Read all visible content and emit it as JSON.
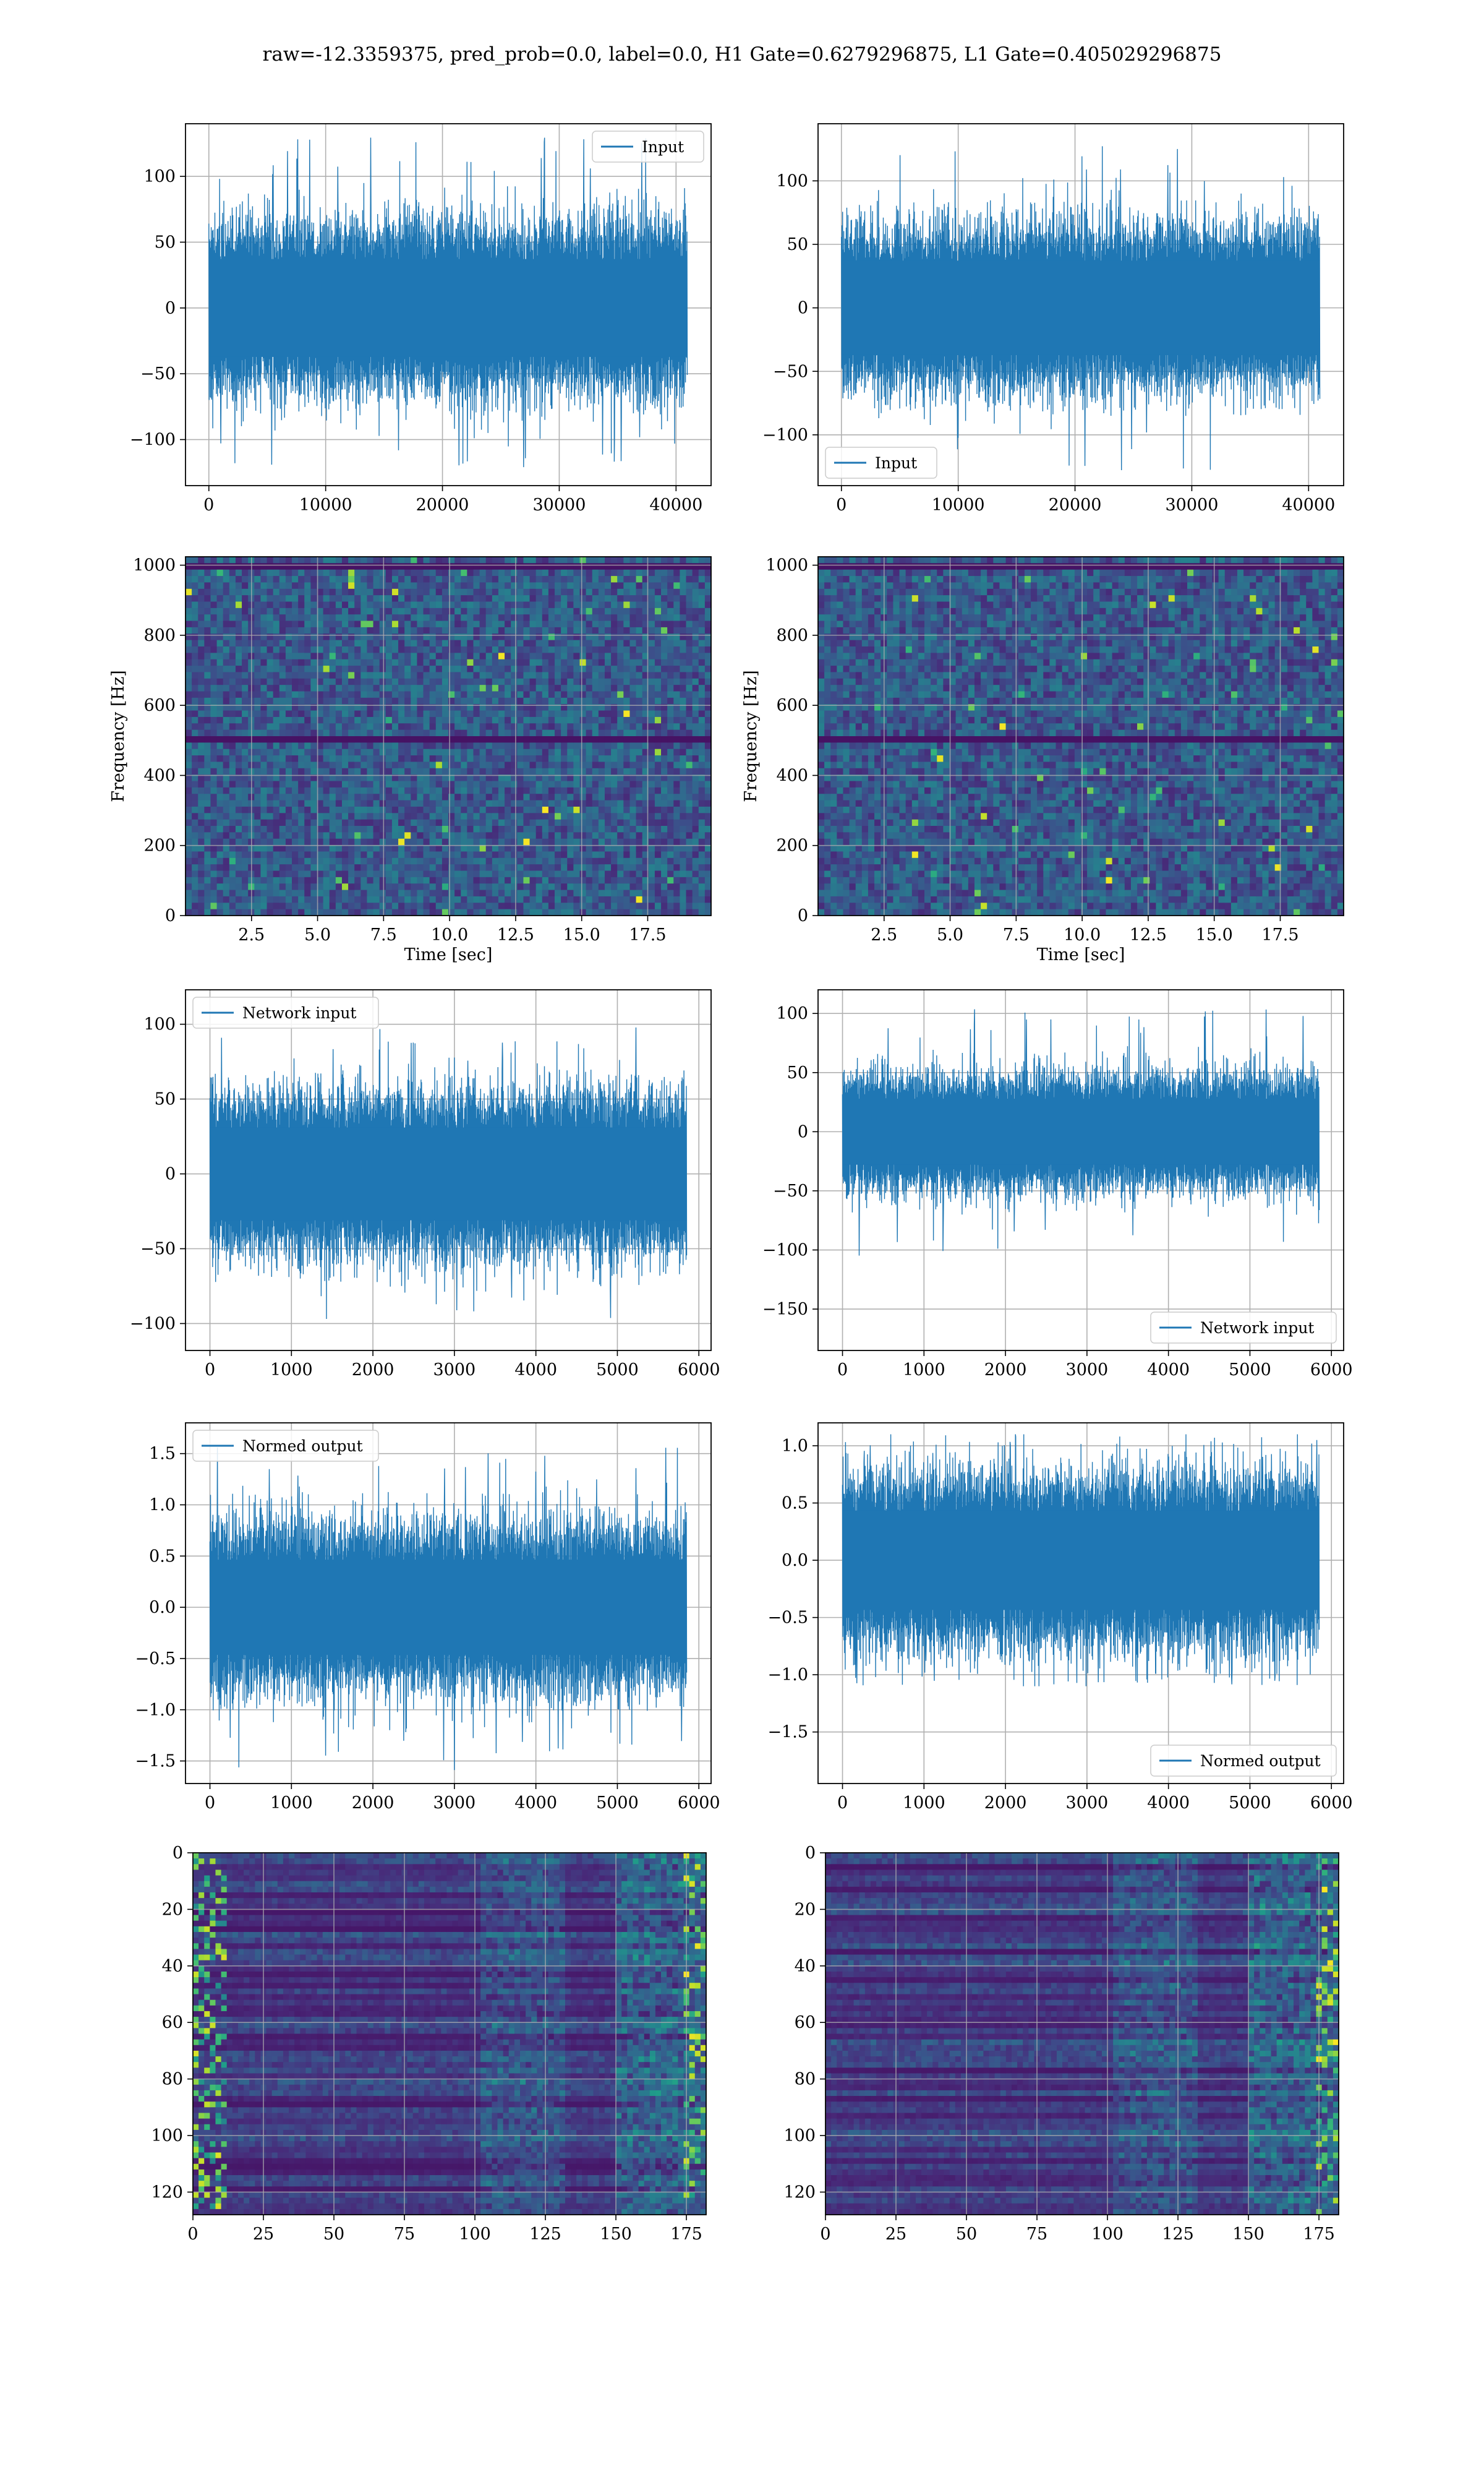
{
  "figure": {
    "suptitle": "raw=-12.3359375, pred_prob=0.0, label=0.0, H1 Gate=0.6279296875, L1 Gate=0.405029296875",
    "colors": {
      "line": "#1f77b4",
      "grid": "#b0b0b0",
      "viridis_dark": "#440154",
      "viridis_mid": "#31688e",
      "viridis_teal": "#21918c",
      "viridis_green": "#5ec962",
      "viridis_yellow": "#fde725"
    }
  },
  "chart_data": [
    {
      "id": "h1-input",
      "type": "line",
      "series": [
        {
          "name": "Input",
          "noise_amplitude": 60,
          "peak": 130
        }
      ],
      "x_range": [
        0,
        40960
      ],
      "xlim": [
        -2000,
        43000
      ],
      "ylim": [
        -135,
        140
      ],
      "xticks": [
        "0",
        "10000",
        "20000",
        "30000",
        "40000"
      ],
      "xtick_values": [
        0,
        10000,
        20000,
        30000,
        40000
      ],
      "yticks": [
        "100",
        "50",
        "0",
        "−50",
        "−100"
      ],
      "ytick_values": [
        100,
        50,
        0,
        -50,
        -100
      ],
      "legend": "top-right",
      "grid": true
    },
    {
      "id": "l1-input",
      "type": "line",
      "series": [
        {
          "name": "Input",
          "noise_amplitude": 60,
          "peak": 130
        }
      ],
      "x_range": [
        0,
        40960
      ],
      "xlim": [
        -2000,
        43000
      ],
      "ylim": [
        -140,
        145
      ],
      "xticks": [
        "0",
        "10000",
        "20000",
        "30000",
        "40000"
      ],
      "xtick_values": [
        0,
        10000,
        20000,
        30000,
        40000
      ],
      "yticks": [
        "100",
        "50",
        "0",
        "−50",
        "−100"
      ],
      "ytick_values": [
        100,
        50,
        0,
        -50,
        -100
      ],
      "legend": "bottom-left",
      "grid": true
    },
    {
      "id": "h1-spectrogram",
      "type": "heatmap",
      "xlabel": "Time [sec]",
      "ylabel": "Frequency [Hz]",
      "xlim": [
        0,
        19.9
      ],
      "ylim": [
        0,
        1024
      ],
      "xticks": [
        "2.5",
        "5.0",
        "7.5",
        "10.0",
        "12.5",
        "15.0",
        "17.5"
      ],
      "xtick_values": [
        2.5,
        5.0,
        7.5,
        10.0,
        12.5,
        15.0,
        17.5
      ],
      "yticks": [
        "1000",
        "800",
        "600",
        "400",
        "200",
        "0"
      ],
      "ytick_values": [
        1000,
        800,
        600,
        400,
        200,
        0
      ],
      "dark_bands_hz": [
        500,
        1000
      ],
      "grid": true
    },
    {
      "id": "l1-spectrogram",
      "type": "heatmap",
      "xlabel": "Time [sec]",
      "ylabel": "Frequency [Hz]",
      "xlim": [
        0,
        19.9
      ],
      "ylim": [
        0,
        1024
      ],
      "xticks": [
        "2.5",
        "5.0",
        "7.5",
        "10.0",
        "12.5",
        "15.0",
        "17.5"
      ],
      "xtick_values": [
        2.5,
        5.0,
        7.5,
        10.0,
        12.5,
        15.0,
        17.5
      ],
      "yticks": [
        "1000",
        "800",
        "600",
        "400",
        "200",
        "0"
      ],
      "ytick_values": [
        1000,
        800,
        600,
        400,
        200,
        0
      ],
      "dark_bands_hz": [
        500,
        1000
      ],
      "grid": true
    },
    {
      "id": "h1-network-input",
      "type": "line",
      "series": [
        {
          "name": "Network input",
          "noise_amplitude": 50,
          "peak": 100
        }
      ],
      "x_range": [
        0,
        5850
      ],
      "xlim": [
        -300,
        6150
      ],
      "ylim": [
        -118,
        123
      ],
      "xticks": [
        "0",
        "1000",
        "2000",
        "3000",
        "4000",
        "5000",
        "6000"
      ],
      "xtick_values": [
        0,
        1000,
        2000,
        3000,
        4000,
        5000,
        6000
      ],
      "yticks": [
        "100",
        "50",
        "0",
        "−50",
        "−100"
      ],
      "ytick_values": [
        100,
        50,
        0,
        -50,
        -100
      ],
      "legend": "top-left",
      "grid": true
    },
    {
      "id": "l1-network-input",
      "type": "line",
      "series": [
        {
          "name": "Network input",
          "noise_amplitude": 45,
          "peak": 105
        }
      ],
      "x_range": [
        0,
        5850
      ],
      "xlim": [
        -300,
        6150
      ],
      "ylim": [
        -185,
        120
      ],
      "xticks": [
        "0",
        "1000",
        "2000",
        "3000",
        "4000",
        "5000",
        "6000"
      ],
      "xtick_values": [
        0,
        1000,
        2000,
        3000,
        4000,
        5000,
        6000
      ],
      "yticks": [
        "100",
        "50",
        "0",
        "−50",
        "−100",
        "−150"
      ],
      "ytick_values": [
        100,
        50,
        0,
        -50,
        -100,
        -150
      ],
      "legend": "bottom-right",
      "grid": true
    },
    {
      "id": "h1-normed-output",
      "type": "line",
      "series": [
        {
          "name": "Normed output",
          "noise_amplitude": 0.75,
          "peak": 1.6
        }
      ],
      "x_range": [
        0,
        5850
      ],
      "xlim": [
        -300,
        6150
      ],
      "ylim": [
        -1.72,
        1.8
      ],
      "xticks": [
        "0",
        "1000",
        "2000",
        "3000",
        "4000",
        "5000",
        "6000"
      ],
      "xtick_values": [
        0,
        1000,
        2000,
        3000,
        4000,
        5000,
        6000
      ],
      "yticks": [
        "1.5",
        "1.0",
        "0.5",
        "0.0",
        "−0.5",
        "−1.0",
        "−1.5"
      ],
      "ytick_values": [
        1.5,
        1.0,
        0.5,
        0.0,
        -0.5,
        -1.0,
        -1.5
      ],
      "legend": "top-left",
      "grid": true
    },
    {
      "id": "l1-normed-output",
      "type": "line",
      "series": [
        {
          "name": "Normed output",
          "noise_amplitude": 0.7,
          "peak": 1.1
        }
      ],
      "x_range": [
        0,
        5850
      ],
      "xlim": [
        -300,
        6150
      ],
      "ylim": [
        -1.95,
        1.2
      ],
      "xticks": [
        "0",
        "1000",
        "2000",
        "3000",
        "4000",
        "5000",
        "6000"
      ],
      "xtick_values": [
        0,
        1000,
        2000,
        3000,
        4000,
        5000,
        6000
      ],
      "yticks": [
        "1.0",
        "0.5",
        "0.0",
        "−0.5",
        "−1.0",
        "−1.5"
      ],
      "ytick_values": [
        1.0,
        0.5,
        0.0,
        -0.5,
        -1.0,
        -1.5
      ],
      "legend": "bottom-right",
      "grid": true
    },
    {
      "id": "h1-feature-map",
      "type": "heatmap",
      "xlim": [
        0,
        182
      ],
      "ylim": [
        128,
        0
      ],
      "rows": 128,
      "cols": 182,
      "xticks": [
        "0",
        "25",
        "50",
        "75",
        "100",
        "125",
        "150",
        "175"
      ],
      "xtick_values": [
        0,
        25,
        50,
        75,
        100,
        125,
        150,
        175
      ],
      "yticks": [
        "0",
        "20",
        "40",
        "60",
        "80",
        "100",
        "120"
      ],
      "ytick_values": [
        0,
        20,
        40,
        60,
        80,
        100,
        120
      ],
      "bright_edges": [
        "left",
        "right"
      ],
      "grid": true
    },
    {
      "id": "l1-feature-map",
      "type": "heatmap",
      "xlim": [
        0,
        182
      ],
      "ylim": [
        128,
        0
      ],
      "rows": 128,
      "cols": 182,
      "xticks": [
        "0",
        "25",
        "50",
        "75",
        "100",
        "125",
        "150",
        "175"
      ],
      "xtick_values": [
        0,
        25,
        50,
        75,
        100,
        125,
        150,
        175
      ],
      "yticks": [
        "0",
        "20",
        "40",
        "60",
        "80",
        "100",
        "120"
      ],
      "ytick_values": [
        0,
        20,
        40,
        60,
        80,
        100,
        120
      ],
      "bright_edges": [
        "right"
      ],
      "grid": true
    }
  ]
}
